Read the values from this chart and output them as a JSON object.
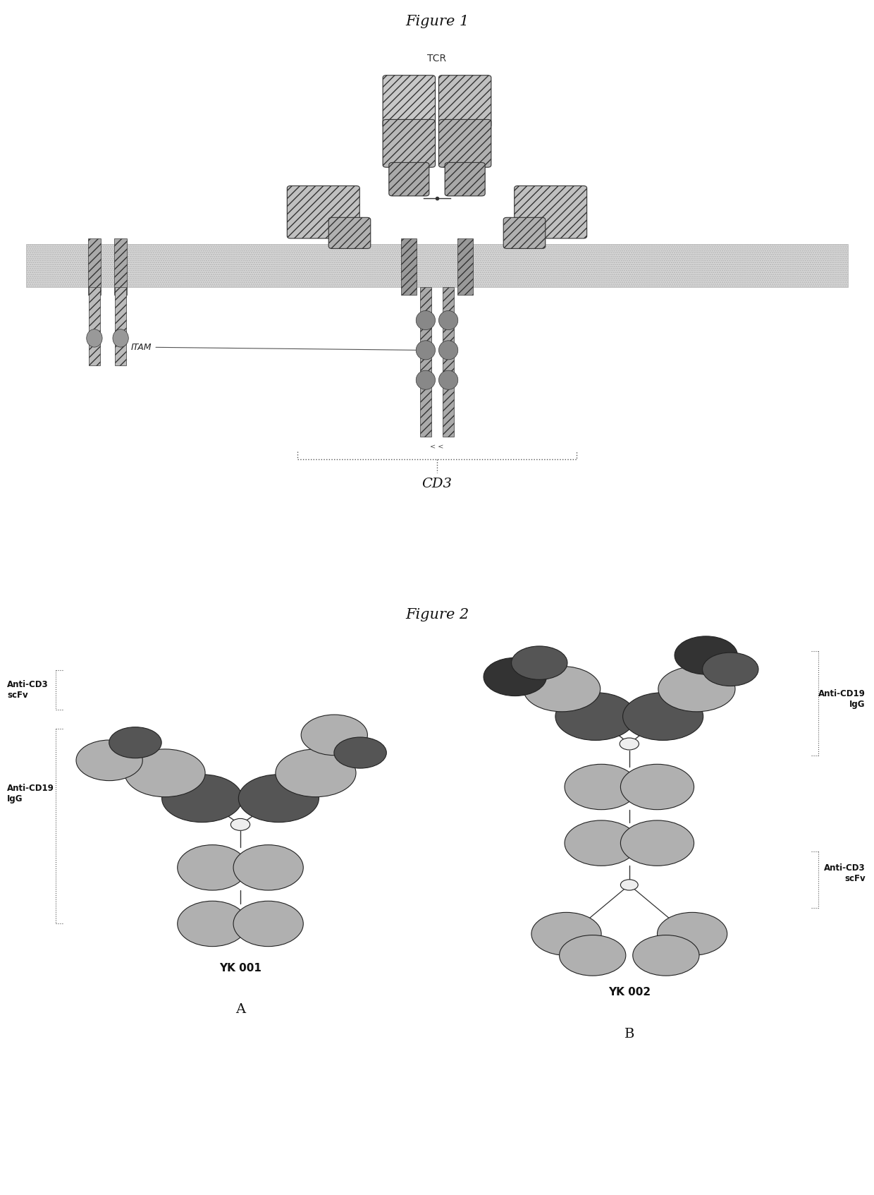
{
  "fig_title1": "Figure 1",
  "fig_title2": "Figure 2",
  "tcr_label": "TCR",
  "cd3_label": "CD3",
  "itam_label": "ITAM",
  "label_yk001": "YK 001",
  "label_yk002": "YK 002",
  "label_A": "A",
  "label_B": "B",
  "label_anti_cd3_scfv_left": "Anti-CD3\nscFv",
  "label_anti_cd19_igg_left": "Anti-CD19\nIgG",
  "label_anti_cd19_igg_right": "Anti-CD19\nIgG",
  "label_anti_cd3_scfv_right": "Anti-CD3\nscFv",
  "bg_color": "#ffffff",
  "fig_width": 12.4,
  "fig_height": 16.94,
  "domain_gray_light": "#b0b0b0",
  "domain_gray_mid": "#888888",
  "domain_gray_dark": "#555555",
  "domain_gray_vdark": "#333333",
  "ec_color": "#222222"
}
